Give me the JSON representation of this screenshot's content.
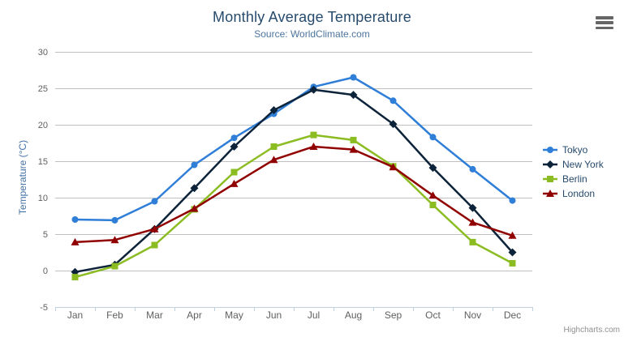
{
  "chart": {
    "title": "Monthly Average Temperature",
    "subtitle": "Source: WorldClimate.com",
    "credits": "Highcharts.com",
    "menu_icon": "hamburger-menu-icon"
  },
  "chart_data": {
    "type": "line",
    "title": "Monthly Average Temperature",
    "subtitle": "Source: WorldClimate.com",
    "categories": [
      "Jan",
      "Feb",
      "Mar",
      "Apr",
      "May",
      "Jun",
      "Jul",
      "Aug",
      "Sep",
      "Oct",
      "Nov",
      "Dec"
    ],
    "series": [
      {
        "name": "Tokyo",
        "color": "#2f7ed8",
        "marker": "circle",
        "values": [
          7.0,
          6.9,
          9.5,
          14.5,
          18.2,
          21.5,
          25.2,
          26.5,
          23.3,
          18.3,
          13.9,
          9.6
        ]
      },
      {
        "name": "New York",
        "color": "#0d233a",
        "marker": "diamond",
        "values": [
          -0.2,
          0.8,
          5.7,
          11.3,
          17.0,
          22.0,
          24.8,
          24.1,
          20.1,
          14.1,
          8.6,
          2.5
        ]
      },
      {
        "name": "Berlin",
        "color": "#8bbc21",
        "marker": "square",
        "values": [
          -0.9,
          0.6,
          3.5,
          8.4,
          13.5,
          17.0,
          18.6,
          17.9,
          14.3,
          9.0,
          3.9,
          1.0
        ]
      },
      {
        "name": "London",
        "color": "#910000",
        "marker": "triangle",
        "values": [
          3.9,
          4.2,
          5.7,
          8.5,
          11.9,
          15.2,
          17.0,
          16.6,
          14.2,
          10.3,
          6.6,
          4.8
        ]
      }
    ],
    "xlabel": "",
    "ylabel": "Temperature (°C)",
    "ylim": [
      -5,
      30
    ],
    "ytick_interval": 5,
    "yticks": [
      -5,
      0,
      5,
      10,
      15,
      20,
      25,
      30
    ],
    "grid": true,
    "legend_position": "right"
  },
  "colors": {
    "title": "#274b6d",
    "subtitle": "#4d759e",
    "y_axis_title": "#4572a7",
    "axis_labels": "#606060",
    "grid_line": "#c0c0c0",
    "x_axis_line": "#c0d0e0",
    "legend_text": "#274b6d",
    "credits": "#909090",
    "menu_icon": "#666666",
    "background": "#ffffff"
  }
}
